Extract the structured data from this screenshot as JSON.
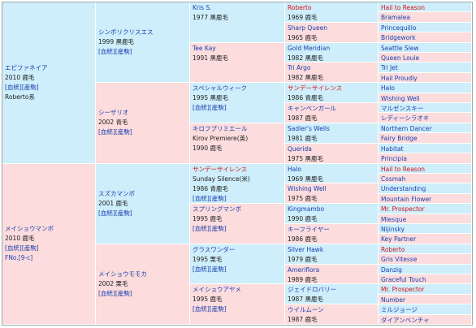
{
  "pedigree": {
    "sire_color": "#cdeefa",
    "dam_color": "#fcdcdc",
    "columns": [
      [
        {
          "lines": [
            "エピファネイア",
            "2010 鹿毛",
            "[血統][産駒]",
            "Roberto系"
          ]
        },
        {
          "lines": [
            "メイショウマンボ",
            "2010 鹿毛",
            "[血統][産駒]",
            "FNo.[9-c]"
          ]
        }
      ],
      [
        {
          "lines": [
            "シンボリクリスエス",
            "1999 黒鹿毛",
            "[血統][産駒]"
          ]
        },
        {
          "lines": [
            "シーザリオ",
            "2002 青毛",
            "[血統][産駒]"
          ]
        },
        {
          "lines": [
            "スズカマンボ",
            "2001 鹿毛",
            "[血統][産駒]"
          ]
        },
        {
          "lines": [
            "メイショウモモカ",
            "2002 栗毛",
            "[血統][産駒]"
          ]
        }
      ],
      [
        {
          "lines": [
            "Kris S.",
            "1977 黒鹿毛"
          ]
        },
        {
          "lines": [
            "Tee Kay",
            "1991 黒鹿毛"
          ]
        },
        {
          "lines": [
            "スペシャルウィーク",
            "1995 黒鹿毛",
            "[血統][産駒]"
          ]
        },
        {
          "lines": [
            "キロフプリミエール",
            "Kirov Premiere(英)",
            "1990 鹿毛"
          ]
        },
        {
          "lines": [
            "サンデーサイレンス",
            "Sunday Silence(米)",
            "1986 青鹿毛",
            "[血統][産駒]"
          ],
          "red": true
        },
        {
          "lines": [
            "スプリングマンボ",
            "1995 鹿毛",
            "[血統][産駒]"
          ]
        },
        {
          "lines": [
            "グラスワンダー",
            "1995 栗毛",
            "[血統][産駒]"
          ]
        },
        {
          "lines": [
            "メイショウアヤメ",
            "1995 鹿毛",
            "[血統][産駒]"
          ]
        }
      ],
      [
        {
          "lines": [
            "Roberto",
            "1969 鹿毛"
          ],
          "red": true
        },
        {
          "lines": [
            "Sharp Queen",
            "1965 鹿毛"
          ]
        },
        {
          "lines": [
            "Gold Meridian",
            "1982 黒鹿毛"
          ]
        },
        {
          "lines": [
            "Tri Argo",
            "1982 黒鹿毛"
          ]
        },
        {
          "lines": [
            "サンデーサイレンス",
            "1986 青鹿毛"
          ],
          "red": true
        },
        {
          "lines": [
            "キャンペンガール",
            "1987 鹿毛"
          ]
        },
        {
          "lines": [
            "Sadler's Wells",
            "1981 鹿毛"
          ]
        },
        {
          "lines": [
            "Querida",
            "1975 黒鹿毛"
          ]
        },
        {
          "lines": [
            "Halo",
            "1969 黒鹿毛"
          ]
        },
        {
          "lines": [
            "Wishing Well",
            "1975 鹿毛"
          ]
        },
        {
          "lines": [
            "Kingmambo",
            "1990 鹿毛"
          ]
        },
        {
          "lines": [
            "キーフライヤー",
            "1986 鹿毛"
          ]
        },
        {
          "lines": [
            "Silver Hawk",
            "1979 鹿毛"
          ]
        },
        {
          "lines": [
            "Ameriflora",
            "1989 鹿毛"
          ]
        },
        {
          "lines": [
            "ジェイドロバリー",
            "1987 黒鹿毛"
          ]
        },
        {
          "lines": [
            "ウイルムーン",
            "1987 鹿毛"
          ]
        }
      ],
      [
        {
          "lines": [
            "Hail to Reason"
          ],
          "red": true
        },
        {
          "lines": [
            "Bramalea"
          ]
        },
        {
          "lines": [
            "Princequillo"
          ]
        },
        {
          "lines": [
            "Bridgework"
          ]
        },
        {
          "lines": [
            "Seattle Slew"
          ]
        },
        {
          "lines": [
            "Queen Louie"
          ]
        },
        {
          "lines": [
            "Tri Jet"
          ]
        },
        {
          "lines": [
            "Hail Proudly"
          ]
        },
        {
          "lines": [
            "Halo"
          ]
        },
        {
          "lines": [
            "Wishing Well"
          ]
        },
        {
          "lines": [
            "マルゼンスキー"
          ]
        },
        {
          "lines": [
            "レディーシラオキ"
          ]
        },
        {
          "lines": [
            "Northern Dancer"
          ]
        },
        {
          "lines": [
            "Fairy Bridge"
          ]
        },
        {
          "lines": [
            "Habitat"
          ]
        },
        {
          "lines": [
            "Principia"
          ]
        },
        {
          "lines": [
            "Hail to Reason"
          ],
          "red": true
        },
        {
          "lines": [
            "Cosmah"
          ]
        },
        {
          "lines": [
            "Understanding"
          ]
        },
        {
          "lines": [
            "Mountain Flower"
          ]
        },
        {
          "lines": [
            "Mr. Prospector"
          ],
          "red": true
        },
        {
          "lines": [
            "Miesque"
          ]
        },
        {
          "lines": [
            "Nijinsky"
          ]
        },
        {
          "lines": [
            "Key Partner"
          ]
        },
        {
          "lines": [
            "Roberto"
          ],
          "red": true
        },
        {
          "lines": [
            "Gris Vitesse"
          ]
        },
        {
          "lines": [
            "Danzig"
          ]
        },
        {
          "lines": [
            "Graceful Touch"
          ]
        },
        {
          "lines": [
            "Mr. Prospector"
          ],
          "red": true
        },
        {
          "lines": [
            "Number"
          ]
        },
        {
          "lines": [
            "ミルジョージ"
          ]
        },
        {
          "lines": [
            "ダイアンベンチャ"
          ]
        }
      ]
    ]
  }
}
